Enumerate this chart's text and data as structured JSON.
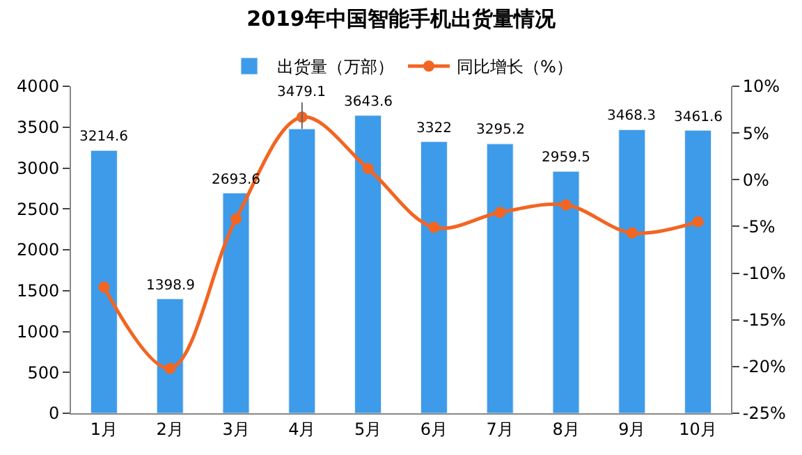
{
  "chart_data": {
    "type": "bar",
    "title": "2019年中国智能手机出货量情况",
    "categories": [
      "1月",
      "2月",
      "3月",
      "4月",
      "5月",
      "6月",
      "7月",
      "8月",
      "9月",
      "10月"
    ],
    "series": [
      {
        "name": "出货量（万部）",
        "color": "#3d9be9",
        "values": [
          3214.6,
          1398.9,
          2693.6,
          3479.1,
          3643.6,
          3322,
          3295.2,
          2959.5,
          3468.3,
          3461.6
        ],
        "value_labels": [
          "3214.6",
          "1398.9",
          "2693.6",
          "3479.1",
          "3643.6",
          "3322",
          "3295.2",
          "2959.5",
          "3468.3",
          "3461.6"
        ]
      },
      {
        "name": "同比增长（%）",
        "type": "line",
        "axis": "y2",
        "color": "#f26522",
        "marker": "circle",
        "values": [
          -11.5,
          -20.2,
          -4.2,
          6.7,
          1.2,
          -5.1,
          -3.5,
          -2.7,
          -5.7,
          -4.5
        ]
      }
    ],
    "ylim": [
      0,
      4000
    ],
    "yticks": [
      0,
      500,
      1000,
      1500,
      2000,
      2500,
      3000,
      3500,
      4000
    ],
    "y2lim": [
      -25,
      10
    ],
    "y2ticks": [
      {
        "value": -25,
        "label": "-25%"
      },
      {
        "value": -20,
        "label": "-20%"
      },
      {
        "value": -15,
        "label": "-15%"
      },
      {
        "value": -10,
        "label": "-10%"
      },
      {
        "value": -5,
        "label": "-5%"
      },
      {
        "value": 0,
        "label": "0%"
      },
      {
        "value": 5,
        "label": "5%"
      },
      {
        "value": 10,
        "label": "10%"
      }
    ],
    "legend": "top"
  }
}
